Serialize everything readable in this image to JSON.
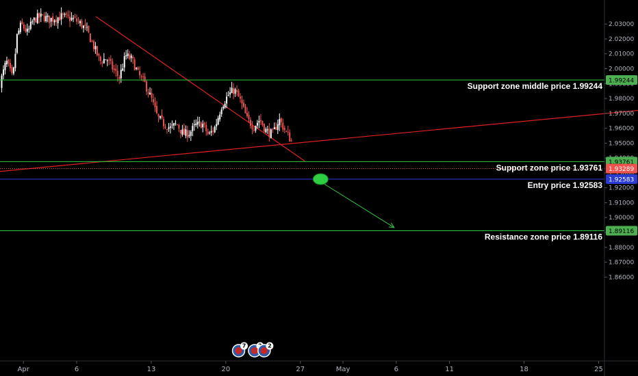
{
  "chart_data": {
    "type": "candlestick",
    "symbol_pair_hint": "",
    "y_range": [
      1.855,
      2.035
    ],
    "y_ticks": [
      "2.03000",
      "2.02000",
      "2.01000",
      "2.00000",
      "1.99000",
      "1.98000",
      "1.97000",
      "1.96000",
      "1.95000",
      "1.94000",
      "1.93000",
      "1.92000",
      "1.91000",
      "1.90000",
      "1.89000",
      "1.88000",
      "1.87000",
      "1.86000"
    ],
    "x_ticks": [
      {
        "label": "Apr",
        "day": 0
      },
      {
        "label": "6",
        "day": 5
      },
      {
        "label": "13",
        "day": 12
      },
      {
        "label": "20",
        "day": 19
      },
      {
        "label": "27",
        "day": 26
      },
      {
        "label": "May",
        "day": 30
      },
      {
        "label": "6",
        "day": 35
      },
      {
        "label": "11",
        "day": 40
      },
      {
        "label": "18",
        "day": 47
      },
      {
        "label": "25",
        "day": 54
      }
    ],
    "x_day_range": [
      -2.2,
      57.7
    ],
    "levels": [
      {
        "name": "support-zone-middle",
        "price": 1.99244,
        "tag": "1.99244",
        "label": "Support zone middle price 1.99244",
        "color": "#2ecc40",
        "tag_bg": "#4caf50",
        "tag_fg": "#000000"
      },
      {
        "name": "support-zone",
        "price": 1.93761,
        "tag": "1.93761",
        "label": "Support zone price 1.93761",
        "color": "#2ecc40",
        "tag_bg": "#4caf50",
        "tag_fg": "#000000"
      },
      {
        "name": "current-price",
        "price": 1.93289,
        "tag": "1.93289",
        "label": "",
        "color": "#ef5350",
        "tag_bg": "#ef5350",
        "tag_fg": "#ffffff",
        "dotted": true
      },
      {
        "name": "entry",
        "price": 1.92583,
        "tag": "1.92583",
        "label": "Entry price 1.92583",
        "color": "#2a3bd1",
        "tag_bg": "#2a3bd1",
        "tag_fg": "#ffffff"
      },
      {
        "name": "resistance-zone",
        "price": 1.89116,
        "tag": "1.89116",
        "label": "Resistance zone price 1.89116",
        "color": "#2ecc40",
        "tag_bg": "#4caf50",
        "tag_fg": "#000000"
      }
    ],
    "trendlines": [
      {
        "name": "descending-trendline",
        "color": "#e02020",
        "points": [
          [
            6.8,
            2.035
          ],
          [
            26.4,
            1.938
          ]
        ]
      },
      {
        "name": "ascending-trendline",
        "color": "#e02020",
        "points": [
          [
            -2.2,
            1.931
          ],
          [
            57.7,
            1.972
          ]
        ]
      }
    ],
    "projection": {
      "color": "#2ecc40",
      "from": [
        27.8,
        1.9245
      ],
      "to": [
        34.8,
        1.8933
      ]
    },
    "entry_marker": {
      "day": 27.9,
      "price": 1.9258,
      "color": "#2ecc40"
    },
    "events": [
      {
        "day": 20.2,
        "count": "7"
      },
      {
        "day": 21.7,
        "count": "2"
      },
      {
        "day": 22.6,
        "count": "2"
      }
    ],
    "colors": {
      "up": "#ffffff",
      "down": "#ef5350",
      "background": "#000000",
      "axis_text": "#b2b5be"
    },
    "candle_path": [
      [
        -2.2,
        1.99
      ],
      [
        -1.6,
        2.005
      ],
      [
        -1.0,
        1.993
      ],
      [
        -0.6,
        2.022
      ],
      [
        -0.2,
        2.03
      ],
      [
        0.4,
        2.024
      ],
      [
        0.8,
        2.031
      ],
      [
        1.2,
        2.034
      ],
      [
        1.8,
        2.035
      ],
      [
        2.4,
        2.033
      ],
      [
        3.0,
        2.034
      ],
      [
        3.6,
        2.035
      ],
      [
        4.2,
        2.034
      ],
      [
        4.8,
        2.033
      ],
      [
        5.4,
        2.03
      ],
      [
        6.0,
        2.025
      ],
      [
        6.6,
        2.015
      ],
      [
        7.2,
        2.005
      ],
      [
        7.8,
        2.007
      ],
      [
        8.4,
        2.0
      ],
      [
        9.0,
        1.994
      ],
      [
        9.6,
        2.009
      ],
      [
        10.2,
        2.006
      ],
      [
        10.8,
        1.996
      ],
      [
        11.4,
        1.99
      ],
      [
        12.0,
        1.98
      ],
      [
        12.6,
        1.967
      ],
      [
        13.2,
        1.963
      ],
      [
        13.8,
        1.96
      ],
      [
        14.4,
        1.963
      ],
      [
        15.0,
        1.956
      ],
      [
        15.6,
        1.957
      ],
      [
        16.2,
        1.962
      ],
      [
        16.8,
        1.963
      ],
      [
        17.4,
        1.955
      ],
      [
        18.0,
        1.961
      ],
      [
        18.6,
        1.975
      ],
      [
        19.2,
        1.982
      ],
      [
        19.8,
        1.986
      ],
      [
        20.4,
        1.978
      ],
      [
        21.0,
        1.966
      ],
      [
        21.6,
        1.961
      ],
      [
        22.2,
        1.966
      ],
      [
        22.8,
        1.958
      ],
      [
        23.4,
        1.956
      ],
      [
        24.0,
        1.966
      ],
      [
        24.6,
        1.958
      ],
      [
        25.2,
        1.951
      ],
      [
        25.8,
        1.958
      ],
      [
        26.4,
        1.969
      ],
      [
        27.0,
        1.962
      ],
      [
        27.6,
        1.957
      ],
      [
        28.2,
        1.952
      ],
      [
        28.8,
        1.955
      ],
      [
        29.4,
        1.945
      ],
      [
        30.0,
        1.95
      ],
      [
        30.6,
        1.943
      ],
      [
        31.2,
        1.953
      ],
      [
        31.8,
        1.944
      ],
      [
        32.4,
        1.937
      ],
      [
        33.0,
        1.941
      ],
      [
        33.6,
        1.943
      ],
      [
        34.0,
        1.935
      ],
      [
        34.4,
        1.933
      ]
    ]
  }
}
